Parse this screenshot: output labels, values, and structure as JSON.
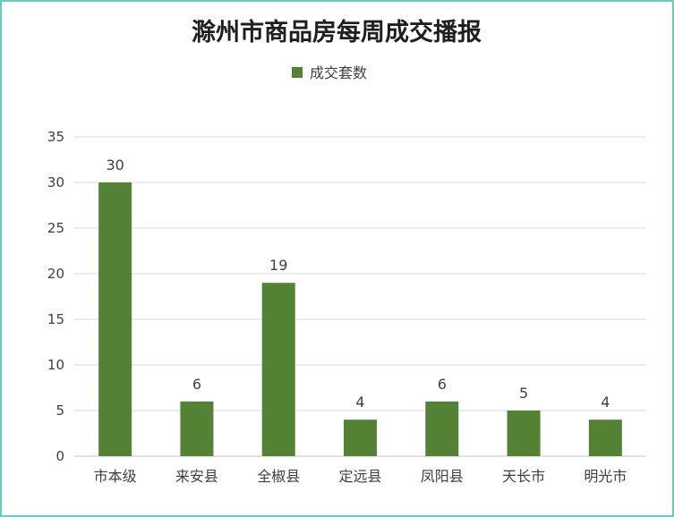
{
  "chart_data": {
    "type": "bar",
    "title": "滁州市商品房每周成交播报",
    "legend": {
      "placement": "top",
      "entries": [
        "成交套数"
      ]
    },
    "series": [
      {
        "name": "成交套数",
        "color": "#548235",
        "values": [
          30,
          6,
          19,
          4,
          6,
          5,
          4
        ]
      }
    ],
    "categories": [
      "市本级",
      "来安县",
      "全椒县",
      "定远县",
      "凤阳县",
      "天长市",
      "明光市"
    ],
    "ylim": [
      0,
      35
    ],
    "y_ticks": [
      0,
      5,
      10,
      15,
      20,
      25,
      30,
      35
    ],
    "grid": true,
    "xlabel": "",
    "ylabel": ""
  }
}
